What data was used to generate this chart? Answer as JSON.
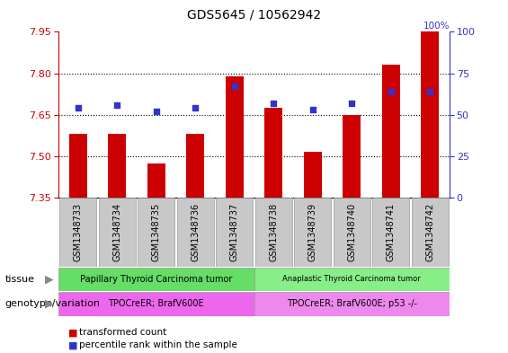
{
  "title": "GDS5645 / 10562942",
  "samples": [
    "GSM1348733",
    "GSM1348734",
    "GSM1348735",
    "GSM1348736",
    "GSM1348737",
    "GSM1348738",
    "GSM1348739",
    "GSM1348740",
    "GSM1348741",
    "GSM1348742"
  ],
  "transformed_count": [
    7.58,
    7.58,
    7.475,
    7.58,
    7.79,
    7.675,
    7.515,
    7.65,
    7.83,
    7.95
  ],
  "percentile_rank": [
    54,
    56,
    52,
    54,
    67,
    57,
    53,
    57,
    64,
    64
  ],
  "ylim_left": [
    7.35,
    7.95
  ],
  "ylim_right": [
    0,
    100
  ],
  "yticks_left": [
    7.35,
    7.5,
    7.65,
    7.8,
    7.95
  ],
  "yticks_right": [
    0,
    25,
    50,
    75,
    100
  ],
  "bar_color": "#CC0000",
  "dot_color": "#3333CC",
  "bar_width": 0.45,
  "tissue_labels": [
    "Papillary Thyroid Carcinoma tumor",
    "Anaplastic Thyroid Carcinoma tumor"
  ],
  "tissue_colors": [
    "#66DD66",
    "#88EE88"
  ],
  "genotype_labels": [
    "TPOCreER; BrafV600E",
    "TPOCreER; BrafV600E; p53 -/-"
  ],
  "genotype_colors": [
    "#EE66EE",
    "#EE88EE"
  ],
  "legend_bar_label": "transformed count",
  "legend_dot_label": "percentile rank within the sample",
  "tissue_row_label": "tissue",
  "genotype_row_label": "genotype/variation",
  "grid_linestyle": "dotted",
  "grid_color": "#000000",
  "grid_linewidth": 0.8,
  "tick_color_left": "#CC0000",
  "tick_color_right": "#3333CC",
  "background_color": "#FFFFFF",
  "plot_bg_color": "#FFFFFF",
  "tick_box_color": "#C8C8C8"
}
